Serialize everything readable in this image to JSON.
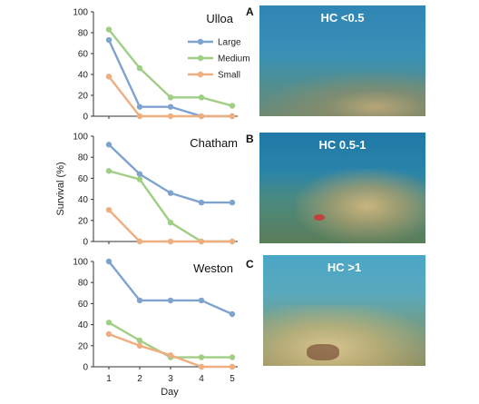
{
  "chart_data": [
    {
      "type": "line",
      "title": "Ulloa",
      "x": [
        1,
        2,
        3,
        4,
        5
      ],
      "ylim": [
        0,
        100
      ],
      "yticks": [
        0,
        20,
        40,
        60,
        80,
        100
      ],
      "series": [
        {
          "name": "Large",
          "color": "#7fa3cf",
          "values": [
            73,
            9,
            9,
            0,
            0
          ]
        },
        {
          "name": "Medium",
          "color": "#9fce84",
          "values": [
            83,
            46,
            18,
            18,
            10
          ]
        },
        {
          "name": "Small",
          "color": "#efae80",
          "values": [
            38,
            0,
            0,
            0,
            0
          ]
        }
      ],
      "legend": "right"
    },
    {
      "type": "line",
      "title": "Chatham",
      "x": [
        1,
        2,
        3,
        4,
        5
      ],
      "ylim": [
        0,
        100
      ],
      "yticks": [
        0,
        20,
        40,
        60,
        80,
        100
      ],
      "series": [
        {
          "name": "Large",
          "color": "#7fa3cf",
          "values": [
            92,
            64,
            46,
            37,
            37
          ]
        },
        {
          "name": "Medium",
          "color": "#9fce84",
          "values": [
            67,
            59,
            18,
            0,
            0
          ]
        },
        {
          "name": "Small",
          "color": "#efae80",
          "values": [
            30,
            0,
            0,
            0,
            0
          ]
        }
      ]
    },
    {
      "type": "line",
      "title": "Weston",
      "x": [
        1,
        2,
        3,
        4,
        5
      ],
      "ylim": [
        0,
        100
      ],
      "yticks": [
        0,
        20,
        40,
        60,
        80,
        100
      ],
      "series": [
        {
          "name": "Large",
          "color": "#7fa3cf",
          "values": [
            100,
            63,
            63,
            63,
            50
          ]
        },
        {
          "name": "Medium",
          "color": "#9fce84",
          "values": [
            42,
            25,
            9,
            9,
            9
          ]
        },
        {
          "name": "Small",
          "color": "#efae80",
          "values": [
            31,
            20,
            11,
            0,
            0
          ]
        }
      ]
    }
  ],
  "ylabel": "Survival (%)",
  "xlabel": "Day",
  "photos": [
    {
      "letter": "A",
      "label": "HC <0.5"
    },
    {
      "letter": "B",
      "label": "HC 0.5-1"
    },
    {
      "letter": "C",
      "label": "HC >1"
    }
  ]
}
